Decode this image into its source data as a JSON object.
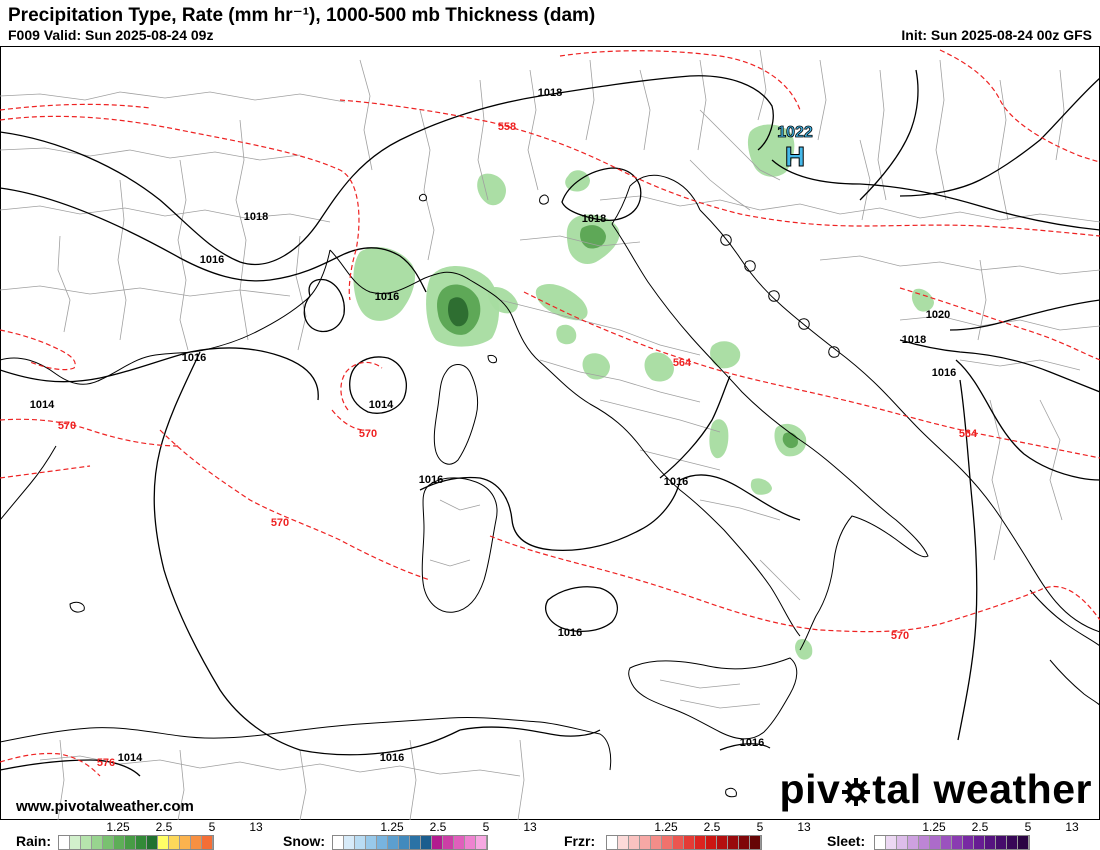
{
  "header": {
    "title": "Precipitation Type, Rate (mm hr⁻¹), 1000-500 mb Thickness (dam)",
    "valid": "F009 Valid: Sun 2025-08-24 09z",
    "init": "Init: Sun 2025-08-24 00z GFS"
  },
  "map": {
    "high_center": {
      "symbol": "H",
      "pressure": "1022"
    },
    "isobar_labels": [
      "1018",
      "1018",
      "1018",
      "1016",
      "1016",
      "1016",
      "1014",
      "1014",
      "1016",
      "1016",
      "1020",
      "1018",
      "1016",
      "1016",
      "1016",
      "1014",
      "1016"
    ],
    "thickness_labels": [
      "558",
      "564",
      "564",
      "570",
      "570",
      "570",
      "570",
      "576"
    ],
    "colors": {
      "isobar": "#000000",
      "thickness": "#ee2222",
      "border": "#a0a0a0",
      "coast": "#000000",
      "rain_light": "#a6dca0",
      "rain_moderate": "#5ea857",
      "rain_heavy": "#2e6e31",
      "high_fill": "#45b9ea"
    }
  },
  "footer": {
    "website": "www.pivotalweather.com",
    "brand_left": "piv",
    "brand_right": "tal weather"
  },
  "legend": [
    {
      "label": "Rain:",
      "ticks": [
        "1.25",
        "2.5",
        "5",
        "13"
      ],
      "colors": [
        "#ffffff",
        "#d2f0cc",
        "#b6e4ad",
        "#98d48f",
        "#79c170",
        "#5eae57",
        "#479c45",
        "#328a38",
        "#217230",
        "#ffff66",
        "#fdd85a",
        "#fbb34e",
        "#f89042",
        "#f56e36"
      ]
    },
    {
      "label": "Snow:",
      "ticks": [
        "1.25",
        "2.5",
        "5",
        "13"
      ],
      "colors": [
        "#ffffff",
        "#d7ebf9",
        "#b9dcf3",
        "#98c9ea",
        "#78b4df",
        "#5c9fcf",
        "#428abd",
        "#2b72a5",
        "#1b5d8e",
        "#b21c8f",
        "#cc3ea6",
        "#e05fbc",
        "#ee82d0",
        "#f7a8e2"
      ]
    },
    {
      "label": "Frzr:",
      "ticks": [
        "1.25",
        "2.5",
        "5",
        "13"
      ],
      "colors": [
        "#ffffff",
        "#fcdad9",
        "#fac2c0",
        "#f7a8a5",
        "#f48d89",
        "#f0726c",
        "#ec5650",
        "#e53b35",
        "#dc231f",
        "#cc1612",
        "#b40f0f",
        "#990a0c",
        "#800709",
        "#660506"
      ]
    },
    {
      "label": "Sleet:",
      "ticks": [
        "1.25",
        "2.5",
        "5",
        "13"
      ],
      "colors": [
        "#ffffff",
        "#ecd8f3",
        "#ddbdea",
        "#cda1e0",
        "#bd85d5",
        "#ac6bca",
        "#9b52be",
        "#8a3bb1",
        "#7829a3",
        "#671c93",
        "#561380",
        "#460c6c",
        "#380857",
        "#2b0543"
      ]
    }
  ]
}
